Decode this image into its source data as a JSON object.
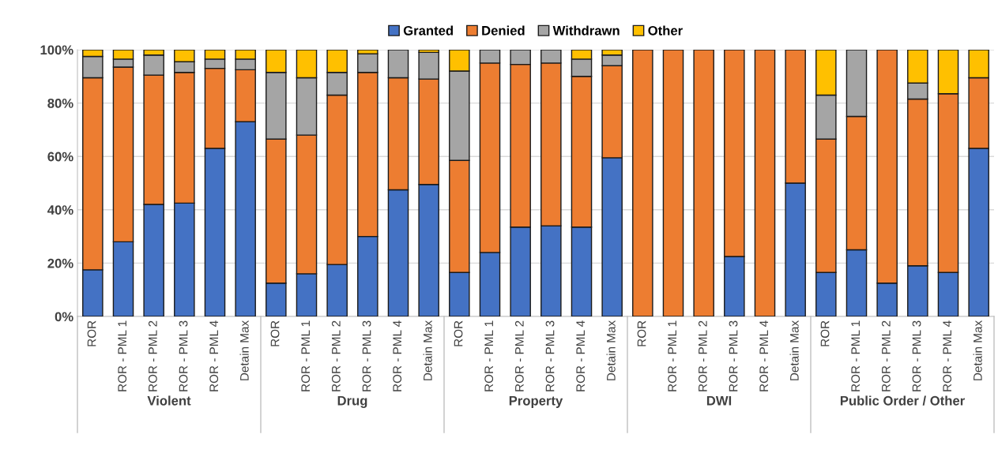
{
  "chart_data": {
    "type": "bar",
    "stacked": true,
    "categories": [
      "ROR",
      "ROR - PML 1",
      "ROR - PML 2",
      "ROR - PML 3",
      "ROR - PML 4",
      "Detain Max",
      "ROR",
      "ROR - PML 1",
      "ROR - PML 2",
      "ROR - PML 3",
      "ROR - PML 4",
      "Detain Max",
      "ROR",
      "ROR - PML 1",
      "ROR - PML 2",
      "ROR - PML 3",
      "ROR - PML 4",
      "Detain Max",
      "ROR",
      "ROR - PML 1",
      "ROR - PML 2",
      "ROR - PML 3",
      "ROR - PML 4",
      "Detain Max",
      "ROR",
      "ROR - PML 1",
      "ROR - PML 2",
      "ROR - PML 3",
      "ROR - PML 4",
      "Detain Max"
    ],
    "series": [
      {
        "name": "Granted",
        "color": "#4472c4",
        "values": [
          17.5,
          28,
          42,
          42.5,
          63,
          73,
          12.5,
          16,
          19.5,
          30,
          47.5,
          49.5,
          16.5,
          24,
          33.5,
          34,
          33.5,
          59.5,
          0,
          0,
          0,
          22.5,
          0,
          50,
          16.5,
          25,
          12.5,
          19,
          16.5,
          63
        ]
      },
      {
        "name": "Denied",
        "color": "#ed7d31",
        "values": [
          72,
          65.5,
          48.5,
          49,
          30,
          19.5,
          54,
          52,
          63.5,
          61.5,
          42,
          39.5,
          42,
          71,
          61,
          61,
          56.5,
          34.5,
          100,
          100,
          100,
          77.5,
          100,
          50,
          50,
          50,
          87.5,
          62.5,
          67,
          26.5
        ]
      },
      {
        "name": "Withdrawn",
        "color": "#a5a5a5",
        "values": [
          8,
          3,
          7.5,
          4,
          3.5,
          4,
          25,
          21.5,
          8.5,
          7,
          10.5,
          10,
          33.5,
          5,
          5.5,
          5,
          6.5,
          4,
          0,
          0,
          0,
          0,
          0,
          0,
          16.5,
          25,
          0,
          6,
          0,
          0
        ]
      },
      {
        "name": "Other",
        "color": "#ffc000",
        "values": [
          2.5,
          3.5,
          2,
          4.5,
          3.5,
          3.5,
          8.5,
          10.5,
          8.5,
          1.5,
          0,
          1,
          8,
          0,
          0,
          0,
          3.5,
          2,
          0,
          0,
          0,
          0,
          0,
          0,
          17,
          0,
          0,
          12.5,
          16.5,
          10.5
        ]
      }
    ],
    "ylim": [
      0,
      100
    ],
    "yticks": [
      {
        "value": 0,
        "label": "0%"
      },
      {
        "value": 20,
        "label": "20%"
      },
      {
        "value": 40,
        "label": "40%"
      },
      {
        "value": 60,
        "label": "60%"
      },
      {
        "value": 80,
        "label": "80%"
      },
      {
        "value": 100,
        "label": "100%"
      }
    ],
    "grid": "y",
    "legend": "top",
    "annotations": [
      "Violent",
      "Drug",
      "Property",
      "DWI",
      "Public Order / Other"
    ]
  }
}
